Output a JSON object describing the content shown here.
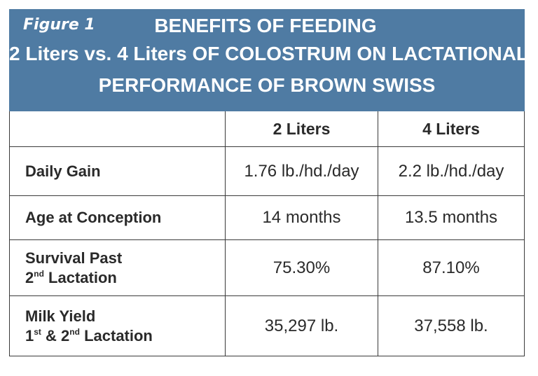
{
  "figure_label": "Figure 1",
  "title": {
    "line1": "BENEFITS OF FEEDING",
    "line2": "2 Liters vs. 4 Liters OF COLOSTRUM ON LACTATIONAL",
    "line3": "PERFORMANCE OF BROWN SWISS"
  },
  "colors": {
    "banner": "#4f7ba3",
    "text": "#2a2a2a",
    "border": "#3a3a3a"
  },
  "table": {
    "headers": [
      "",
      "2 Liters",
      "4 Liters"
    ],
    "rows": [
      {
        "label": "Daily Gain",
        "v2": "1.76 lb./hd./day",
        "v4": "2.2 lb./hd./day"
      },
      {
        "label": "Age at Conception",
        "v2": "14 months",
        "v4": "13.5 months"
      },
      {
        "label_a": "Survival Past",
        "label_b_num": "2",
        "label_b_sup": "nd",
        "label_b_text": " Lactation",
        "v2": "75.30%",
        "v4": "87.10%"
      },
      {
        "label_a": "Milk Yield",
        "label_b_num1": "1",
        "label_b_sup1": "st",
        "label_b_amp": " & ",
        "label_b_num2": "2",
        "label_b_sup2": "nd",
        "label_b_text": " Lactation",
        "v2": "35,297 lb.",
        "v4": "37,558 lb."
      }
    ]
  }
}
